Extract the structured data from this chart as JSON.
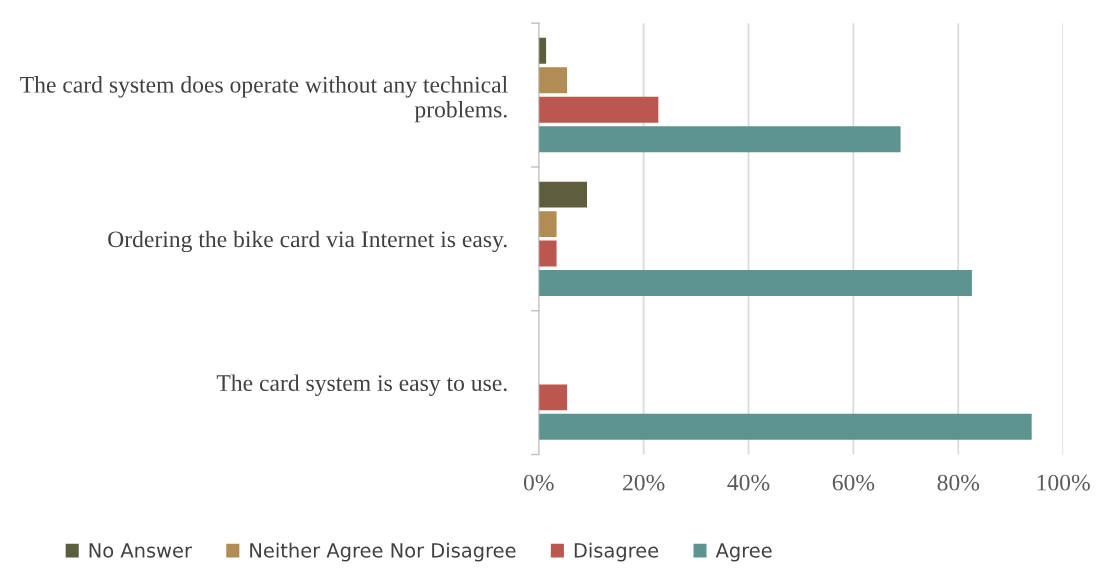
{
  "chart_data": {
    "type": "bar",
    "orientation": "horizontal",
    "categories": [
      "The card system does operate without any technical problems.",
      "Ordering the bike card via Internet is easy.",
      "The card system is easy to use."
    ],
    "series": [
      {
        "name": "No Answer",
        "color": "#5c5e3e",
        "values": [
          1.4,
          9.2,
          null
        ]
      },
      {
        "name": "Neither Agree Nor Disagree",
        "color": "#b18c55",
        "values": [
          5.4,
          3.4,
          null
        ]
      },
      {
        "name": "Disagree",
        "color": "#bc5750",
        "values": [
          22.8,
          3.4,
          5.4
        ]
      },
      {
        "name": "Agree",
        "color": "#5e9490",
        "values": [
          69,
          82.6,
          94
        ]
      }
    ],
    "xlim": [
      0,
      100
    ],
    "xticks": [
      {
        "value": 0,
        "label": "0%"
      },
      {
        "value": 20,
        "label": "20%"
      },
      {
        "value": 40,
        "label": "40%"
      },
      {
        "value": 60,
        "label": "60%"
      },
      {
        "value": 80,
        "label": "80%"
      },
      {
        "value": 100,
        "label": "100%"
      }
    ],
    "grid": "x",
    "legend": "bottom"
  }
}
